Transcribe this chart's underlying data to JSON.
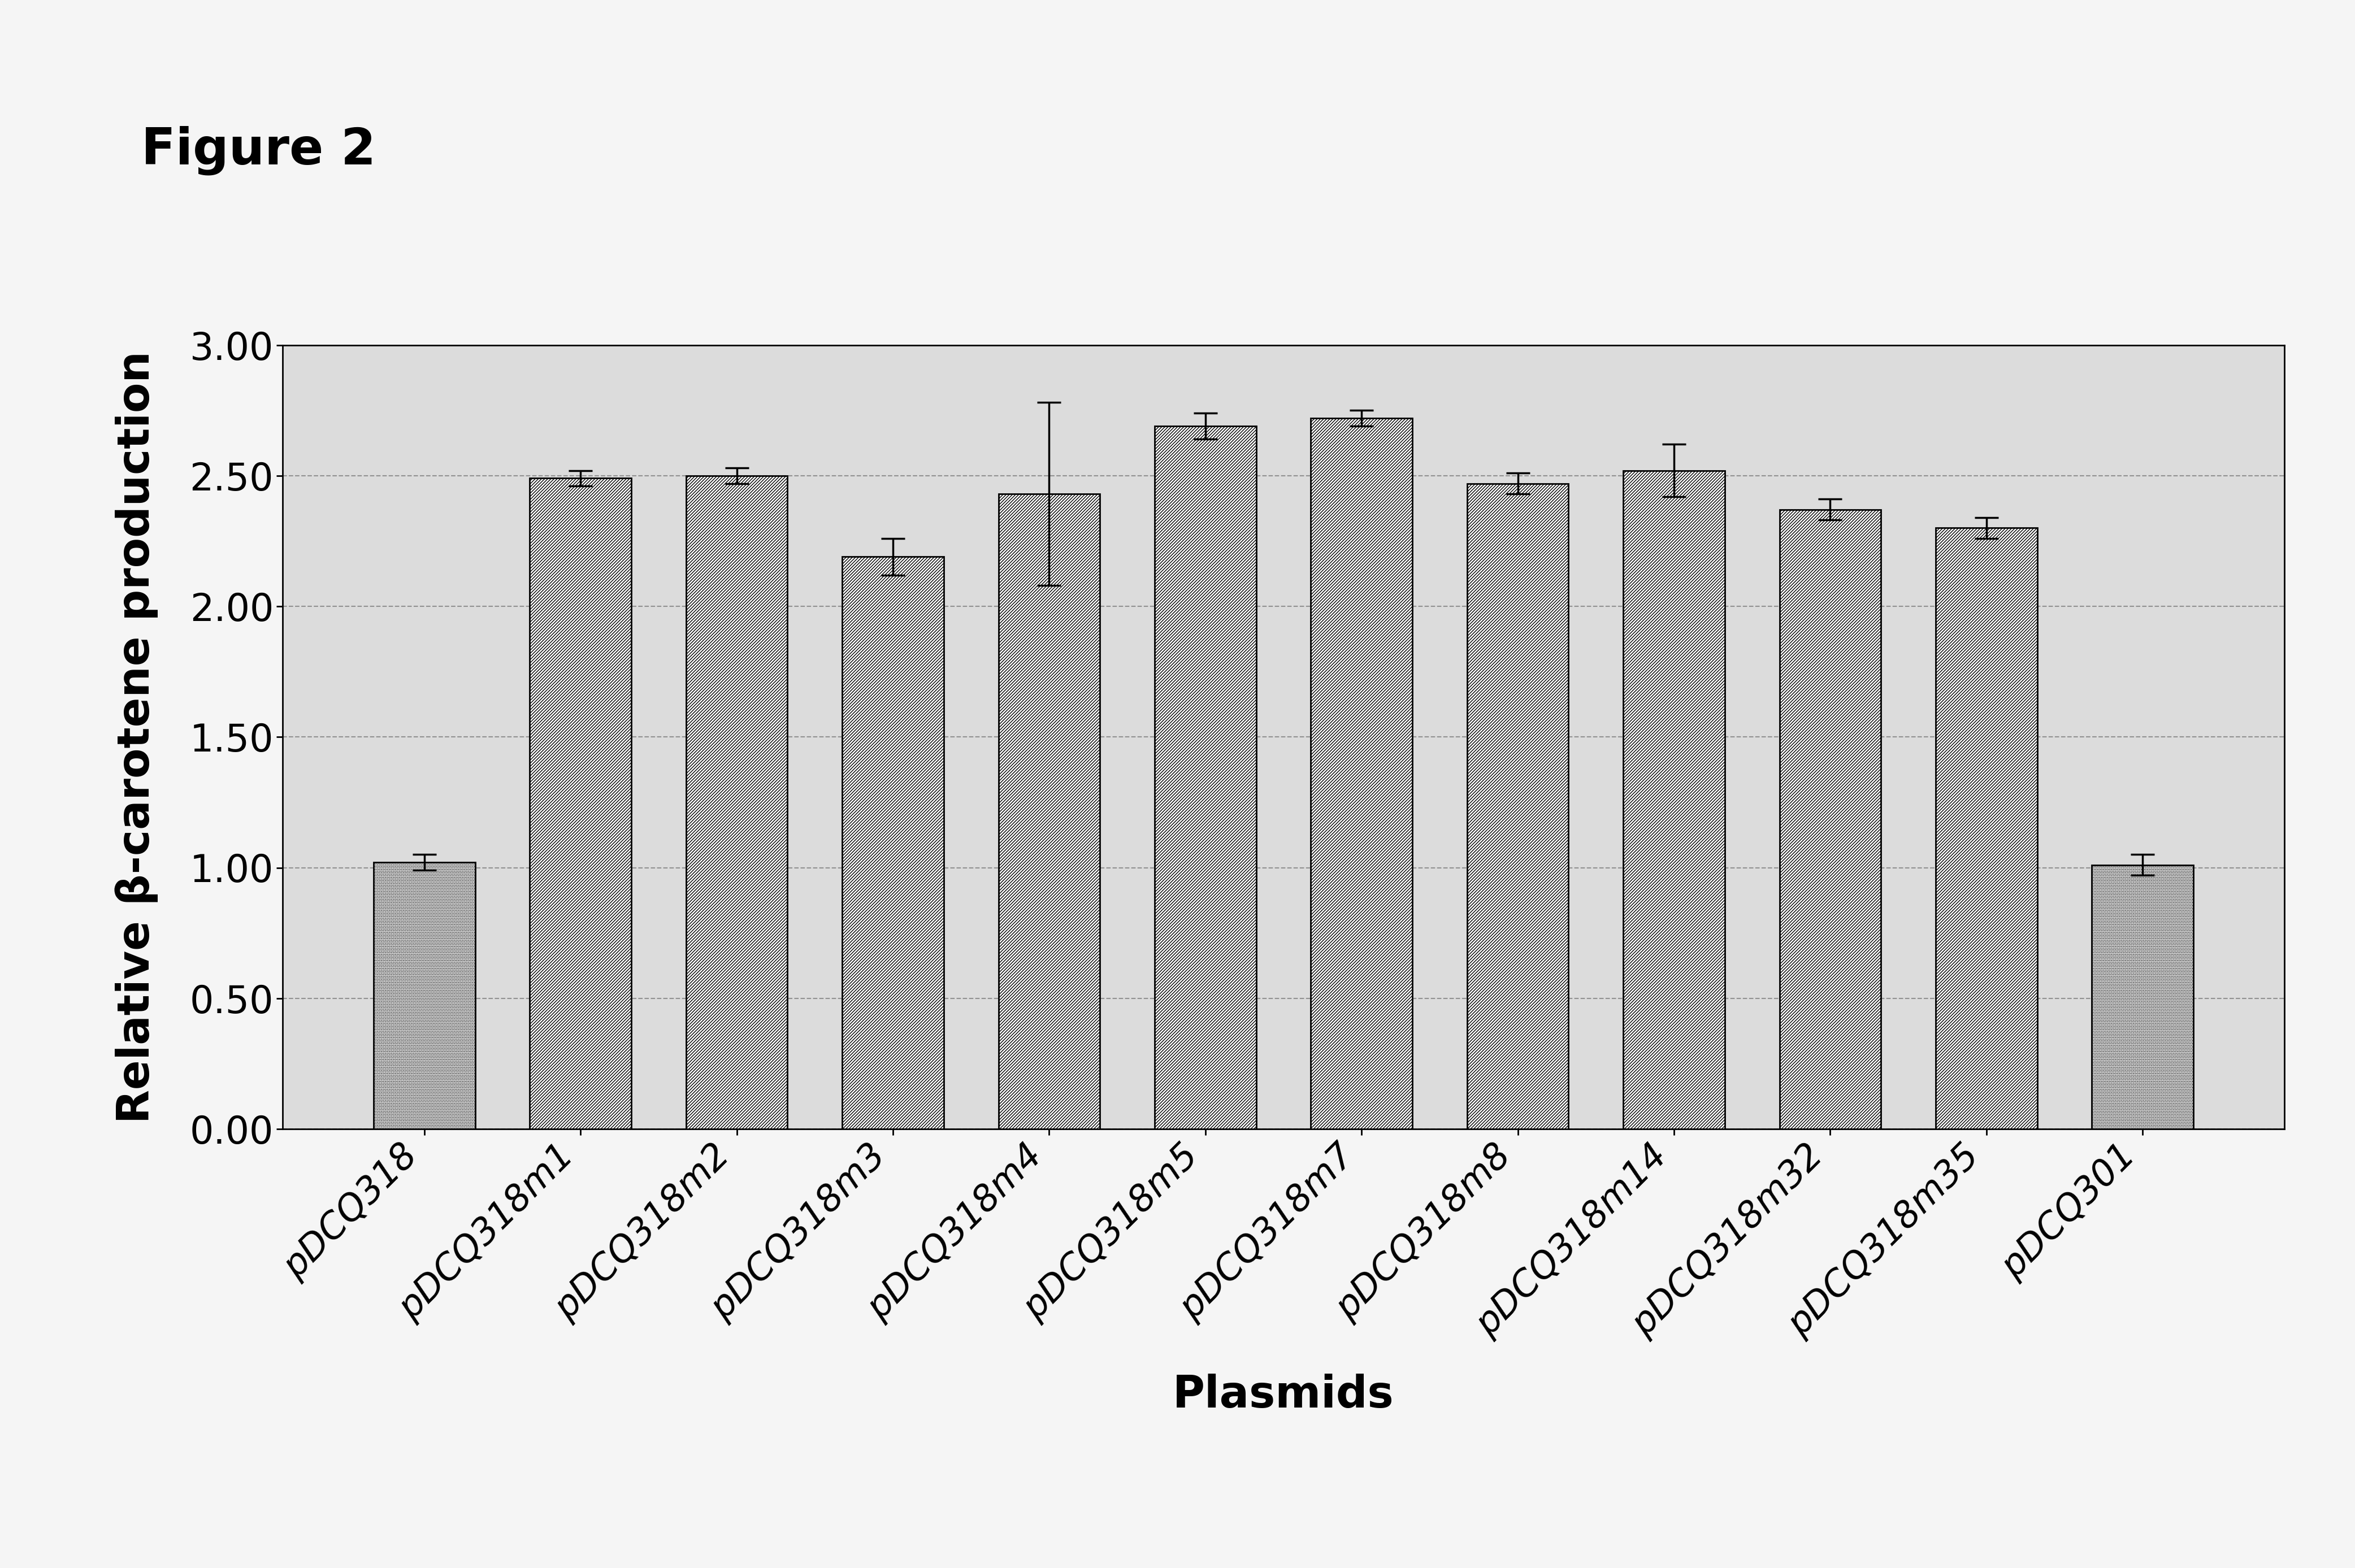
{
  "categories": [
    "pDCQ318",
    "pDCQ318m1",
    "pDCQ318m2",
    "pDCQ318m3",
    "pDCQ318m4",
    "pDCQ318m5",
    "pDCQ318m7",
    "pDCQ318m8",
    "pDCQ318m14",
    "pDCQ318m32",
    "pDCQ318m35",
    "pDCQ301"
  ],
  "values": [
    1.02,
    2.49,
    2.5,
    2.19,
    2.43,
    2.69,
    2.72,
    2.47,
    2.52,
    2.37,
    2.3,
    1.01
  ],
  "errors": [
    0.03,
    0.03,
    0.03,
    0.07,
    0.35,
    0.05,
    0.03,
    0.04,
    0.1,
    0.04,
    0.04,
    0.04
  ],
  "bar_styles": [
    "dotted",
    "hatch",
    "hatch",
    "hatch",
    "hatch",
    "hatch",
    "hatch",
    "hatch",
    "hatch",
    "hatch",
    "hatch",
    "dotted"
  ],
  "ylabel": "Relative β-carotene production",
  "xlabel": "Plasmids",
  "title": "Figure 2",
  "ylim": [
    0.0,
    3.0
  ],
  "yticks": [
    0.0,
    0.5,
    1.0,
    1.5,
    2.0,
    2.5,
    3.0
  ],
  "ytick_labels": [
    "0.00",
    "0.50",
    "1.00",
    "1.50",
    "2.00",
    "2.50",
    "3.00"
  ],
  "figure_width": 41.67,
  "figure_height": 27.75,
  "figure_facecolor": "#f5f5f5",
  "plot_bg_color": "#dcdcdc"
}
